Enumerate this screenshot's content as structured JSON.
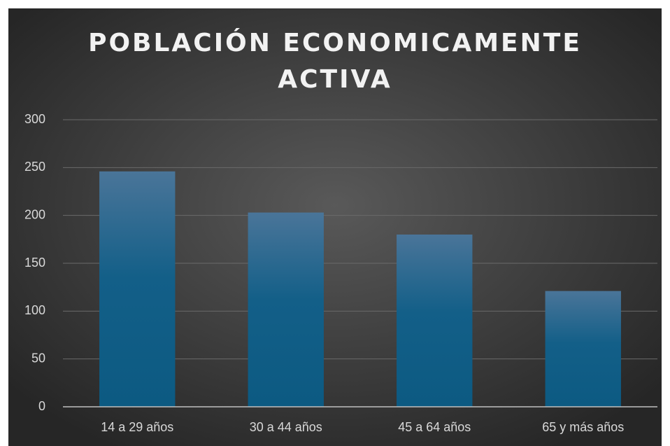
{
  "chart_data": {
    "type": "bar",
    "title": "POBLACIÓN ECONOMICAMENTE ACTIVA",
    "categories": [
      "14 a 29 años",
      "30 a 44 años",
      "45 a 64 años",
      "65 y más años"
    ],
    "values": [
      246,
      203,
      180,
      121
    ],
    "color": "#1a5f86",
    "ylim": [
      0,
      300
    ],
    "yticks": [
      0,
      50,
      100,
      150,
      200,
      250,
      300
    ],
    "grid": true
  }
}
